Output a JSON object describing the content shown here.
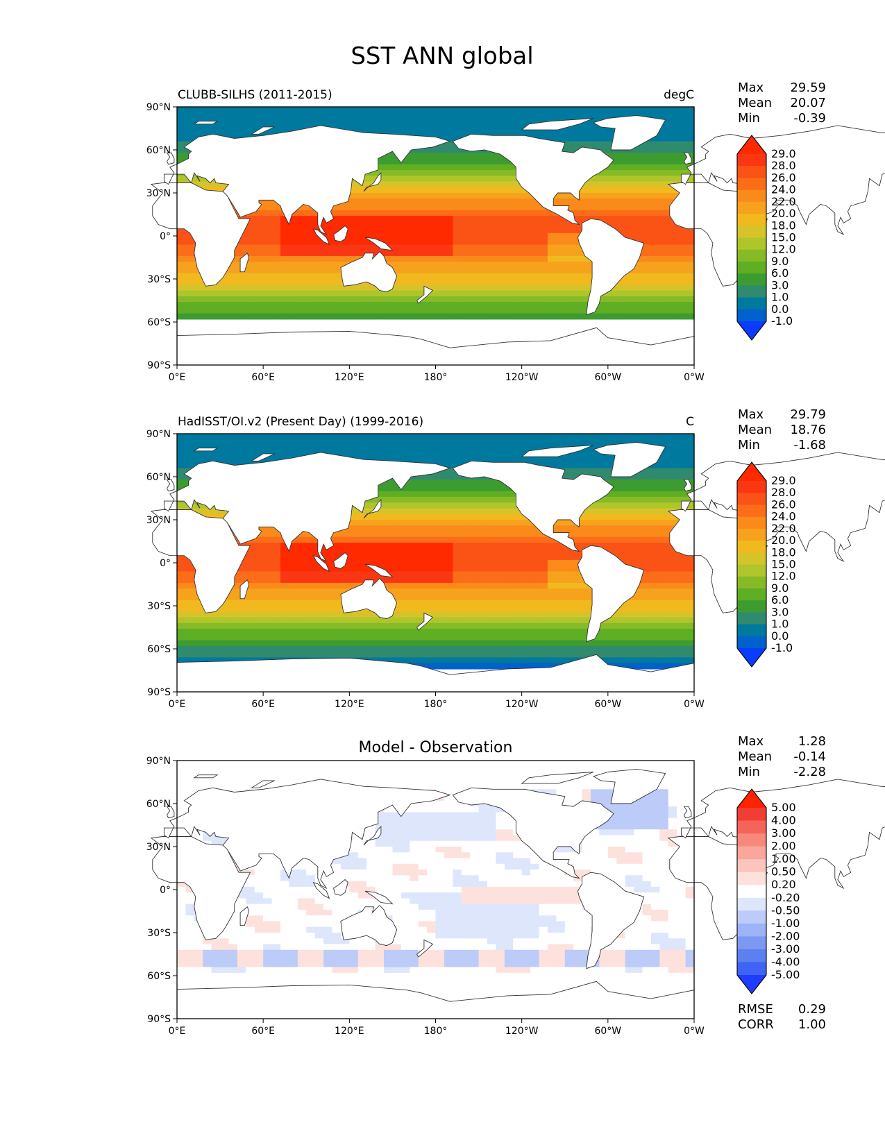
{
  "title": "SST ANN global",
  "colors": {
    "sst_levels": [
      "#0a3cff",
      "#0061cc",
      "#00799e",
      "#2f8a6e",
      "#3d9c2f",
      "#5fae24",
      "#86bb27",
      "#afc62a",
      "#d6c32a",
      "#f2b91f",
      "#f7a21c",
      "#fa8a1a",
      "#fb6d18",
      "#fb5216",
      "#fb3613",
      "#ff2a00"
    ],
    "diff_levels": [
      "#1e3cff",
      "#3f63f2",
      "#5d80f0",
      "#7b99f2",
      "#9db3f5",
      "#bccbf8",
      "#dde6fb",
      "#ffffff",
      "#fde1dd",
      "#fbc4bc",
      "#f9a79c",
      "#f7887b",
      "#f5645a",
      "#f23d35",
      "#ff2200"
    ],
    "land": "#ffffff",
    "coast": "#333333"
  },
  "axes": {
    "lat_ticks": [
      "90°N",
      "60°N",
      "30°N",
      "0°",
      "30°S",
      "60°S",
      "90°S"
    ],
    "lon_ticks": [
      "0°E",
      "60°E",
      "120°E",
      "180°",
      "120°W",
      "60°W",
      "0°W"
    ]
  },
  "panels": [
    {
      "id": "model",
      "left_title": "CLUBB-SILHS (2011-2015)",
      "center_title": "",
      "right_title": "degC",
      "stats": [
        {
          "label": "Max",
          "value": "29.59"
        },
        {
          "label": "Mean",
          "value": "20.07"
        },
        {
          "label": "Min",
          "value": "-0.39"
        }
      ],
      "colorbar_labels": [
        "29.0",
        "28.0",
        "26.0",
        "24.0",
        "22.0",
        "20.0",
        "18.0",
        "15.0",
        "12.0",
        "9.0",
        "6.0",
        "3.0",
        "1.0",
        "0.0",
        "-1.0"
      ],
      "extra_stats": []
    },
    {
      "id": "obs",
      "left_title": "HadISST/OI.v2 (Present Day) (1999-2016)",
      "center_title": "",
      "right_title": "C",
      "stats": [
        {
          "label": "Max",
          "value": "29.79"
        },
        {
          "label": "Mean",
          "value": "18.76"
        },
        {
          "label": "Min",
          "value": "-1.68"
        }
      ],
      "colorbar_labels": [
        "29.0",
        "28.0",
        "26.0",
        "24.0",
        "22.0",
        "20.0",
        "18.0",
        "15.0",
        "12.0",
        "9.0",
        "6.0",
        "3.0",
        "1.0",
        "0.0",
        "-1.0"
      ],
      "extra_stats": []
    },
    {
      "id": "diff",
      "left_title": "",
      "center_title": "Model - Observation",
      "right_title": "",
      "stats": [
        {
          "label": "Max",
          "value": "1.28"
        },
        {
          "label": "Mean",
          "value": "-0.14"
        },
        {
          "label": "Min",
          "value": "-2.28"
        }
      ],
      "colorbar_labels": [
        "5.00",
        "4.00",
        "3.00",
        "2.00",
        "1.00",
        "0.50",
        "0.20",
        "-0.20",
        "-0.50",
        "-1.00",
        "-2.00",
        "-3.00",
        "-4.00",
        "-5.00"
      ],
      "extra_stats": [
        {
          "label": "RMSE",
          "value": "0.29"
        },
        {
          "label": "CORR",
          "value": "1.00"
        }
      ]
    }
  ],
  "chart_data": [
    {
      "type": "heatmap",
      "title": "CLUBB-SILHS (2011-2015)",
      "units": "degC",
      "xlim": [
        0,
        360
      ],
      "ylim": [
        -90,
        90
      ],
      "levels": [
        -1.0,
        0.0,
        1.0,
        3.0,
        6.0,
        9.0,
        12.0,
        15.0,
        18.0,
        20.0,
        22.0,
        24.0,
        26.0,
        28.0,
        29.0
      ],
      "max": 29.59,
      "mean": 20.07,
      "min": -0.39
    },
    {
      "type": "heatmap",
      "title": "HadISST/OI.v2 (Present Day) (1999-2016)",
      "units": "C",
      "xlim": [
        0,
        360
      ],
      "ylim": [
        -90,
        90
      ],
      "levels": [
        -1.0,
        0.0,
        1.0,
        3.0,
        6.0,
        9.0,
        12.0,
        15.0,
        18.0,
        20.0,
        22.0,
        24.0,
        26.0,
        28.0,
        29.0
      ],
      "max": 29.79,
      "mean": 18.76,
      "min": -1.68
    },
    {
      "type": "heatmap",
      "title": "Model - Observation",
      "xlim": [
        0,
        360
      ],
      "ylim": [
        -90,
        90
      ],
      "levels": [
        -5.0,
        -4.0,
        -3.0,
        -2.0,
        -1.0,
        -0.5,
        -0.2,
        0.2,
        0.5,
        1.0,
        2.0,
        3.0,
        4.0,
        5.0
      ],
      "max": 1.28,
      "mean": -0.14,
      "min": -2.28,
      "rmse": 0.29,
      "corr": 1.0
    }
  ]
}
